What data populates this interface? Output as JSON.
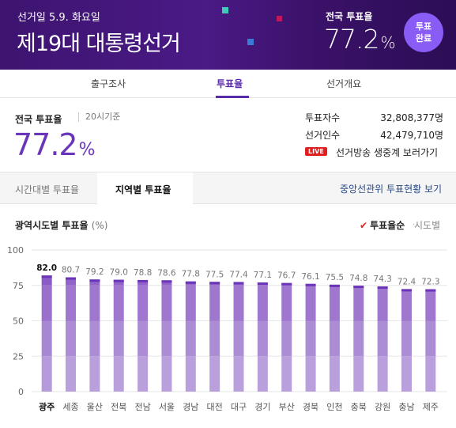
{
  "header": {
    "date": "선거일 5.9. 화요일",
    "title": "제19대 대통령선거",
    "turnout_label": "전국 투표율",
    "turnout_value": "77.2",
    "turnout_unit": "%",
    "badge_line1": "투표",
    "badge_line2": "완료"
  },
  "nav": {
    "tabs": [
      {
        "label": "출구조사"
      },
      {
        "label": "투표율"
      },
      {
        "label": "선거개요"
      }
    ]
  },
  "summary": {
    "label": "전국 투표율",
    "basis": "20시기준",
    "value": "77.2",
    "unit": "%",
    "voters_label": "투표자수",
    "voters_value": "32,808,377명",
    "electorate_label": "선거인수",
    "electorate_value": "42,479,710명",
    "live_badge": "LIVE",
    "live_text": "선거방송 생중계 보러가기"
  },
  "subtabs": {
    "by_time": "시간대별 투표율",
    "by_region": "지역별 투표율",
    "link": "중앙선관위 투표현황 보기"
  },
  "chart_section": {
    "title": "광역시도별 투표율",
    "unit": "(%)",
    "sort_selected": "투표율순",
    "sort_other": "시도별"
  },
  "colors": {
    "header_bg": "#3d1470",
    "accent": "#6a35b8",
    "bar": "#9a70cc",
    "bar_top": "#7b45c0",
    "live": "#e02020"
  },
  "chart_data": {
    "type": "bar",
    "categories": [
      "광주",
      "세종",
      "울산",
      "전북",
      "전남",
      "서울",
      "경남",
      "대전",
      "대구",
      "경기",
      "부산",
      "경북",
      "인천",
      "충북",
      "강원",
      "충남",
      "제주"
    ],
    "values": [
      82.0,
      80.7,
      79.2,
      79.0,
      78.8,
      78.6,
      77.8,
      77.5,
      77.4,
      77.1,
      76.7,
      76.1,
      75.5,
      74.8,
      74.3,
      72.4,
      72.3
    ],
    "value_labels": [
      "82.0",
      "80.7",
      "79.2",
      "79.0",
      "78.8",
      "78.6",
      "77.8",
      "77.5",
      "77.4",
      "77.1",
      "76.7",
      "76.1",
      "75.5",
      "74.8",
      "74.3",
      "72.4",
      "72.3"
    ],
    "yticks": [
      "0",
      "25",
      "50",
      "75",
      "100"
    ],
    "ylim": [
      0,
      100
    ],
    "highlight": "광주"
  }
}
